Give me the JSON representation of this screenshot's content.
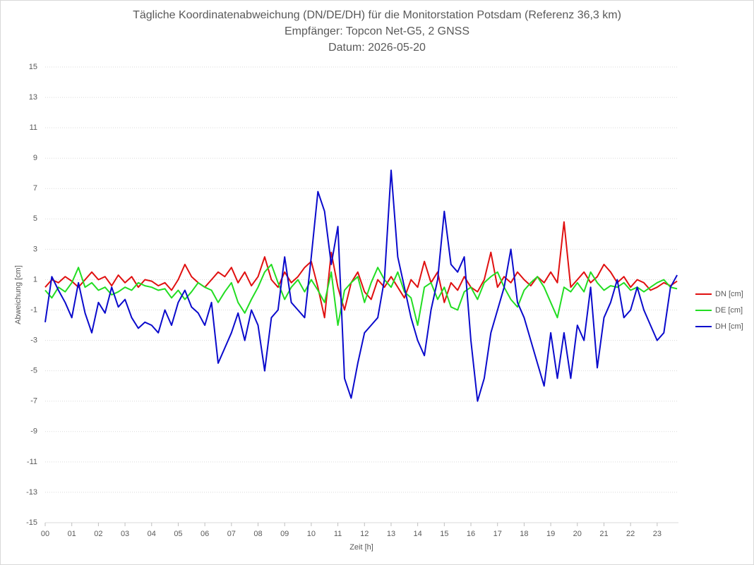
{
  "chart_data": {
    "type": "line",
    "title": "Tägliche Koordinatenabweichung (DN/DE/DH) für die Monitorstation Potsdam (Referenz 36,3 km)",
    "subtitle": [
      "Empfänger: Topcon Net-G5, 2 GNSS",
      "Datum: 2026-05-20"
    ],
    "x_label": "Zeit [h]",
    "y_label": "Abweichung [cm]",
    "x": [
      0,
      0.25,
      0.5,
      0.75,
      1,
      1.25,
      1.5,
      1.75,
      2,
      2.25,
      2.5,
      2.75,
      3,
      3.25,
      3.5,
      3.75,
      4,
      4.25,
      4.5,
      4.75,
      5,
      5.25,
      5.5,
      5.75,
      6,
      6.25,
      6.5,
      6.75,
      7,
      7.25,
      7.5,
      7.75,
      8,
      8.25,
      8.5,
      8.75,
      9,
      9.25,
      9.5,
      9.75,
      10,
      10.25,
      10.5,
      10.75,
      11,
      11.25,
      11.5,
      11.75,
      12,
      12.25,
      12.5,
      12.75,
      13,
      13.25,
      13.5,
      13.75,
      14,
      14.25,
      14.5,
      14.75,
      15,
      15.25,
      15.5,
      15.75,
      16,
      16.25,
      16.5,
      16.75,
      17,
      17.25,
      17.5,
      17.75,
      18,
      18.25,
      18.5,
      18.75,
      19,
      19.25,
      19.5,
      19.75,
      20,
      20.25,
      20.5,
      20.75,
      21,
      21.25,
      21.5,
      21.75,
      22,
      22.25,
      22.5,
      22.75,
      23,
      23.25,
      23.5,
      23.75
    ],
    "series": [
      {
        "name": "DN [cm]",
        "color": "#e01010",
        "values": [
          0.5,
          1.0,
          0.8,
          1.2,
          0.9,
          0.5,
          1.0,
          1.5,
          1.0,
          1.2,
          0.6,
          1.3,
          0.8,
          1.2,
          0.5,
          1.0,
          0.9,
          0.6,
          0.8,
          0.3,
          1.0,
          2.0,
          1.2,
          0.8,
          0.5,
          1.0,
          1.5,
          1.2,
          1.8,
          0.8,
          1.5,
          0.6,
          1.2,
          2.5,
          1.0,
          0.5,
          1.5,
          0.8,
          1.2,
          1.8,
          2.2,
          0.5,
          -1.5,
          2.8,
          0.5,
          -1.0,
          0.8,
          1.5,
          0.2,
          -0.3,
          1.0,
          0.5,
          1.2,
          0.5,
          -0.2,
          1.0,
          0.5,
          2.2,
          0.8,
          1.5,
          -0.5,
          0.8,
          0.3,
          1.2,
          0.5,
          0.2,
          1.0,
          2.8,
          0.5,
          1.2,
          0.8,
          1.5,
          1.0,
          0.6,
          1.2,
          0.8,
          1.5,
          0.8,
          4.8,
          0.5,
          1.0,
          1.5,
          0.8,
          1.2,
          2.0,
          1.5,
          0.8,
          1.2,
          0.5,
          1.0,
          0.8,
          0.3,
          0.5,
          0.8,
          0.6,
          0.9
        ]
      },
      {
        "name": "DE [cm]",
        "color": "#22dd22",
        "values": [
          0.3,
          -0.2,
          0.5,
          0.2,
          0.8,
          1.8,
          0.5,
          0.8,
          0.3,
          0.5,
          0.0,
          0.2,
          0.5,
          0.3,
          0.8,
          0.6,
          0.5,
          0.3,
          0.4,
          -0.2,
          0.3,
          -0.3,
          0.2,
          0.8,
          0.5,
          0.3,
          -0.5,
          0.2,
          0.8,
          -0.5,
          -1.2,
          -0.3,
          0.5,
          1.5,
          2.0,
          0.8,
          -0.3,
          0.5,
          1.0,
          0.2,
          1.0,
          0.3,
          -0.5,
          1.5,
          -2.0,
          0.3,
          0.8,
          1.2,
          -0.5,
          0.8,
          1.8,
          1.0,
          0.5,
          1.5,
          0.2,
          -0.2,
          -2.0,
          0.5,
          0.8,
          -0.3,
          0.5,
          -0.8,
          -1.0,
          0.2,
          0.5,
          -0.3,
          0.8,
          1.2,
          1.5,
          0.5,
          -0.3,
          -0.8,
          0.3,
          0.8,
          1.2,
          0.5,
          -0.5,
          -1.5,
          0.5,
          0.2,
          0.8,
          0.2,
          1.5,
          0.8,
          0.3,
          0.6,
          0.5,
          0.8,
          0.3,
          0.5,
          0.2,
          0.5,
          0.8,
          1.0,
          0.5,
          0.4
        ]
      },
      {
        "name": "DH [cm]",
        "color": "#0a0acc",
        "values": [
          -1.8,
          1.2,
          0.3,
          -0.5,
          -1.5,
          0.8,
          -1.2,
          -2.5,
          -0.5,
          -1.2,
          0.5,
          -0.8,
          -0.3,
          -1.5,
          -2.2,
          -1.8,
          -2.0,
          -2.5,
          -1.0,
          -2.0,
          -0.5,
          0.3,
          -0.8,
          -1.2,
          -2.0,
          -0.5,
          -4.5,
          -3.5,
          -2.5,
          -1.2,
          -3.0,
          -1.0,
          -2.0,
          -5.0,
          -1.5,
          -1.0,
          2.5,
          -0.5,
          -1.0,
          -1.5,
          2.5,
          6.8,
          5.5,
          2.0,
          4.5,
          -5.5,
          -6.8,
          -4.5,
          -2.5,
          -2.0,
          -1.5,
          1.0,
          8.2,
          2.5,
          0.5,
          -1.5,
          -3.0,
          -4.0,
          -1.0,
          1.0,
          5.5,
          2.0,
          1.5,
          2.5,
          -3.0,
          -7.0,
          -5.5,
          -2.5,
          -1.0,
          0.5,
          3.0,
          -0.5,
          -1.5,
          -3.0,
          -4.5,
          -6.0,
          -2.5,
          -5.5,
          -2.5,
          -5.5,
          -2.0,
          -3.0,
          0.5,
          -4.8,
          -1.5,
          -0.5,
          1.0,
          -1.5,
          -1.0,
          0.5,
          -1.0,
          -2.0,
          -3.0,
          -2.5,
          0.5,
          1.3
        ]
      }
    ],
    "xlim": [
      0,
      23.8
    ],
    "xticks": [
      {
        "value": 0,
        "label": "00"
      },
      {
        "value": 1,
        "label": "01"
      },
      {
        "value": 2,
        "label": "02"
      },
      {
        "value": 3,
        "label": "03"
      },
      {
        "value": 4,
        "label": "04"
      },
      {
        "value": 5,
        "label": "05"
      },
      {
        "value": 6,
        "label": "06"
      },
      {
        "value": 7,
        "label": "07"
      },
      {
        "value": 8,
        "label": "08"
      },
      {
        "value": 9,
        "label": "09"
      },
      10,
      11,
      12,
      13,
      14,
      15,
      16,
      17,
      18,
      19,
      20,
      21,
      22,
      23
    ],
    "ylim": [
      -15,
      15
    ],
    "yticks": [
      -15,
      -13,
      -11,
      -9,
      -7,
      -5,
      -3,
      -1,
      1,
      3,
      5,
      7,
      9,
      11,
      13,
      15
    ],
    "grid": true,
    "legend": "right"
  }
}
